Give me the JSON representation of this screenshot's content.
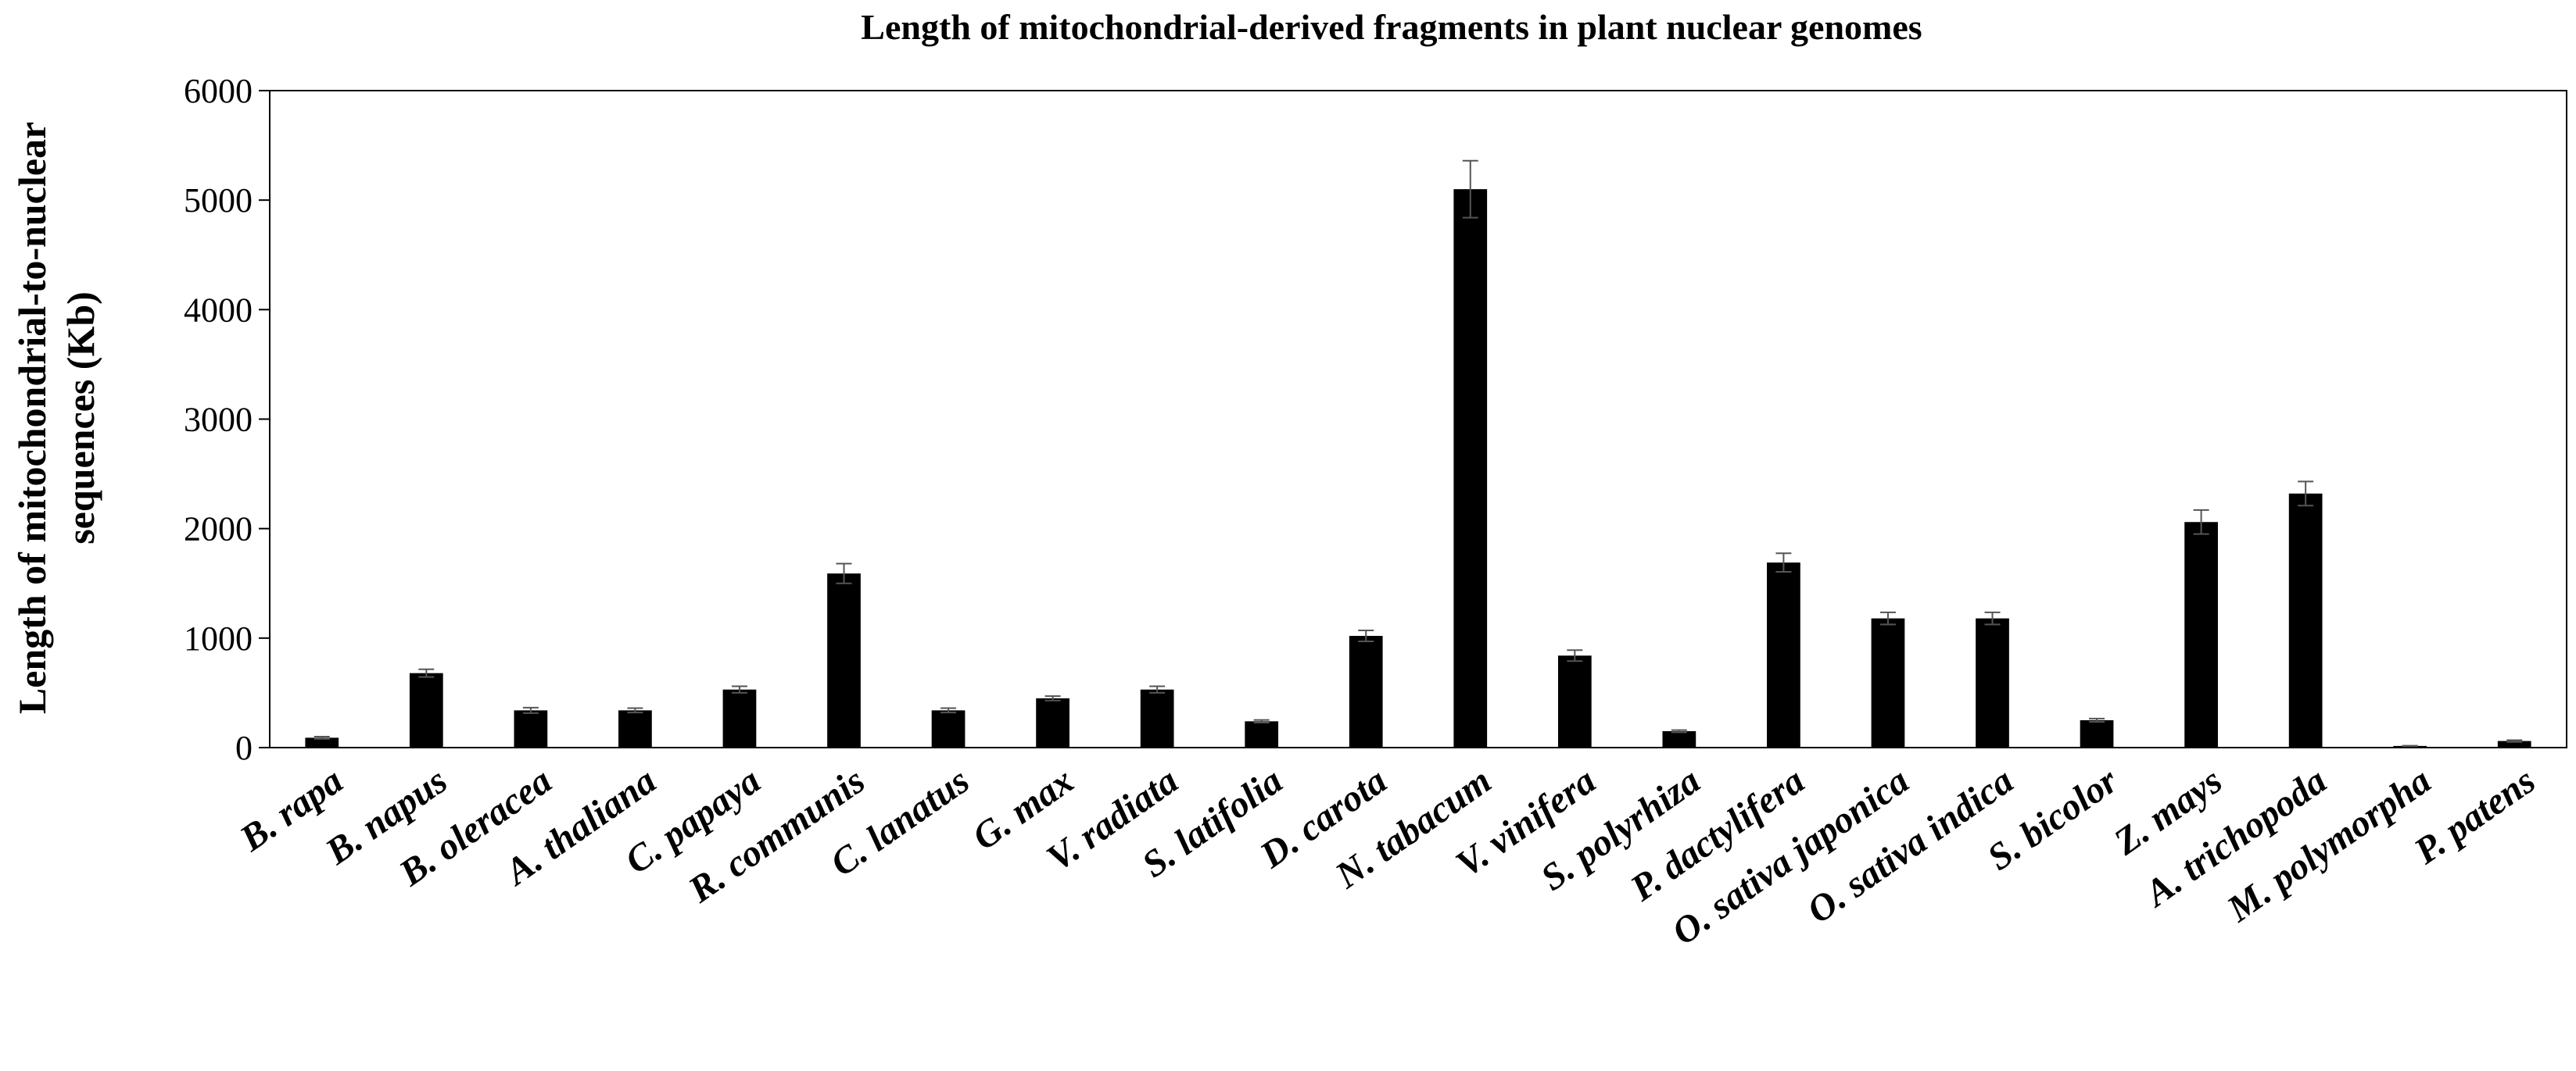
{
  "chart_data": {
    "type": "bar",
    "title": "Length of mitochondrial-derived fragments in plant nuclear genomes",
    "xlabel": "",
    "ylabel": [
      "Length of mitochondrial-to-nuclear",
      "sequences (Kb)"
    ],
    "ylim": [
      0,
      6000
    ],
    "yticks": [
      "0",
      "1000",
      "2000",
      "3000",
      "4000",
      "5000",
      "6000"
    ],
    "grid": false,
    "legend": "none",
    "bar_color": "#000000",
    "error_bar_color": "#555555",
    "categories": [
      "B. rapa",
      "B. napus",
      "B. oleracea",
      "A. thaliana",
      "C. papaya",
      "R. communis",
      "C. lanatus",
      "G. max",
      "V. radiata",
      "S. latifolia",
      "D. carota",
      "N. tabacum",
      "V. vinifera",
      "S. polyrhiza",
      "P. dactylifera",
      "O. sativa japonica",
      "O. sativa indica",
      "S. bicolor",
      "Z. mays",
      "A. trichopoda",
      "M. polymorpha",
      "P. patens"
    ],
    "values": [
      90,
      680,
      340,
      340,
      530,
      1590,
      340,
      450,
      530,
      240,
      1020,
      5100,
      840,
      150,
      1690,
      1180,
      1180,
      250,
      2060,
      2320,
      15,
      60
    ],
    "errors": [
      10,
      35,
      25,
      20,
      30,
      90,
      20,
      20,
      30,
      12,
      50,
      260,
      50,
      10,
      85,
      55,
      55,
      15,
      110,
      110,
      2,
      8
    ]
  }
}
